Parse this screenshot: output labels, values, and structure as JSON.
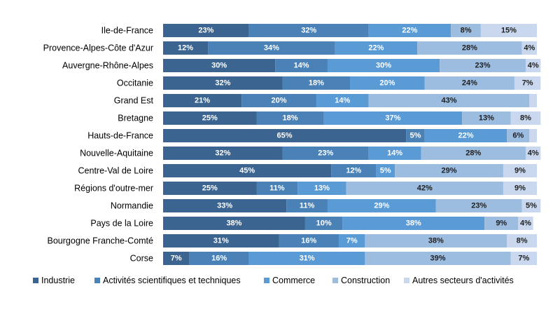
{
  "chart_data": {
    "type": "bar",
    "orientation": "horizontal",
    "stacked": true,
    "percent_stacked": true,
    "categories": [
      "Ile-de-France",
      "Provence-Alpes-Côte d'Azur",
      "Auvergne-Rhône-Alpes",
      "Occitanie",
      "Grand Est",
      "Bretagne",
      "Hauts-de-France",
      "Nouvelle-Aquitaine",
      "Centre-Val de Loire",
      "Régions d'outre-mer",
      "Normandie",
      "Pays de la Loire",
      "Bourgogne Franche-Comté",
      "Corse"
    ],
    "series": [
      {
        "name": "Industrie",
        "color": "#3B6590",
        "label_color": "#ffffff",
        "values": [
          23,
          12,
          30,
          32,
          21,
          25,
          65,
          32,
          45,
          25,
          33,
          38,
          31,
          7
        ],
        "labels": [
          "23%",
          "12%",
          "30%",
          "32%",
          "21%",
          "25%",
          "65%",
          "32%",
          "45%",
          "25%",
          "33%",
          "38%",
          "31%",
          "7%"
        ]
      },
      {
        "name": "Activités scientifiques et techniques",
        "color": "#4A82B7",
        "label_color": "#ffffff",
        "values": [
          32,
          34,
          14,
          18,
          20,
          18,
          5,
          23,
          12,
          11,
          11,
          10,
          16,
          16
        ],
        "labels": [
          "32%",
          "34%",
          "14%",
          "18%",
          "20%",
          "18%",
          "5%",
          "23%",
          "12%",
          "11%",
          "11%",
          "10%",
          "16%",
          "16%"
        ]
      },
      {
        "name": "Commerce",
        "color": "#5B9BD5",
        "label_color": "#ffffff",
        "values": [
          22,
          22,
          30,
          20,
          14,
          37,
          22,
          14,
          5,
          13,
          29,
          38,
          7,
          31
        ],
        "labels": [
          "22%",
          "22%",
          "30%",
          "20%",
          "14%",
          "37%",
          "22%",
          "14%",
          "5%",
          "13%",
          "29%",
          "38%",
          "7%",
          "31%"
        ]
      },
      {
        "name": "Construction",
        "color": "#9DBDE0",
        "label_color": "#1f1f1f",
        "values": [
          8,
          28,
          23,
          24,
          43,
          13,
          6,
          28,
          29,
          42,
          23,
          9,
          38,
          39
        ],
        "labels": [
          "8%",
          "28%",
          "23%",
          "24%",
          "43%",
          "13%",
          "6%",
          "28%",
          "29%",
          "42%",
          "23%",
          "9%",
          "38%",
          "39%"
        ]
      },
      {
        "name": "Autres secteurs d'activités",
        "color": "#C9D8EE",
        "label_color": "#1f1f1f",
        "values": [
          15,
          4,
          4,
          7,
          2,
          8,
          2,
          4,
          9,
          9,
          5,
          4,
          8,
          7
        ],
        "labels": [
          "15%",
          "4%",
          "4%",
          "7%",
          "",
          "8%",
          "",
          "4%",
          "9%",
          "9%",
          "5%",
          "4%",
          "8%",
          "7%"
        ]
      }
    ],
    "xlim": [
      0,
      100
    ],
    "grid": false,
    "legend_position": "bottom"
  }
}
